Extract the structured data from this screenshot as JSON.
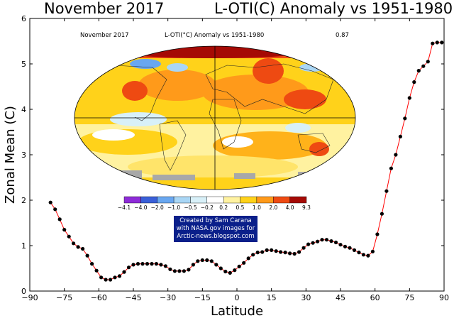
{
  "header": {
    "left_title": "November 2017",
    "right_title": "L-OTI(C) Anomaly vs 1951-1980"
  },
  "map": {
    "caption_left": "November 2017",
    "caption_center": "L-OTI(°C) Anomaly vs 1951-1980",
    "caption_right": "0.87",
    "legend_labels": [
      "-4.1",
      "-4.0",
      "-2.0",
      "-1.0",
      "-0.5",
      "-0.2",
      "0.2",
      "0.5",
      "1.0",
      "2.0",
      "4.0",
      "9.3"
    ],
    "legend_colors": [
      "#8e2bd8",
      "#3a5fd8",
      "#69a7f0",
      "#a9d6f5",
      "#d8f0f8",
      "#ffffff",
      "#fff2a0",
      "#ffd21a",
      "#ff9a1a",
      "#ee4a12",
      "#a50a05"
    ]
  },
  "credit": {
    "line1": "Created by Sam Carana",
    "line2": "with NASA.gov images for",
    "line3": "Arctic-news.blogspot.com"
  },
  "colors": {
    "line": "#ff0000",
    "marker": "#000000"
  },
  "chart_data": {
    "type": "line",
    "title": "November 2017 L-OTI(C) Anomaly vs 1951-1980",
    "xlabel": "Latitude",
    "ylabel": "Zonal Mean (C)",
    "xlim": [
      -90,
      90
    ],
    "ylim": [
      0,
      6
    ],
    "xticks": [
      -90,
      -75,
      -60,
      -45,
      -30,
      -15,
      0,
      15,
      30,
      45,
      60,
      75,
      90
    ],
    "yticks": [
      0,
      1,
      2,
      3,
      4,
      5,
      6
    ],
    "x": [
      -81,
      -79,
      -77,
      -75,
      -73,
      -71,
      -69,
      -67,
      -65,
      -63,
      -61,
      -59,
      -57,
      -55,
      -53,
      -51,
      -49,
      -47,
      -45,
      -43,
      -41,
      -39,
      -37,
      -35,
      -33,
      -31,
      -29,
      -27,
      -25,
      -23,
      -21,
      -19,
      -17,
      -15,
      -13,
      -11,
      -9,
      -7,
      -5,
      -3,
      -1,
      1,
      3,
      5,
      7,
      9,
      11,
      13,
      15,
      17,
      19,
      21,
      23,
      25,
      27,
      29,
      31,
      33,
      35,
      37,
      39,
      41,
      43,
      45,
      47,
      49,
      51,
      53,
      55,
      57,
      59,
      61,
      63,
      65,
      67,
      69,
      71,
      73,
      75,
      77,
      79,
      81,
      83,
      85,
      87,
      89
    ],
    "y": [
      1.95,
      1.8,
      1.58,
      1.35,
      1.2,
      1.05,
      0.97,
      0.93,
      0.78,
      0.6,
      0.45,
      0.3,
      0.25,
      0.25,
      0.3,
      0.33,
      0.42,
      0.52,
      0.58,
      0.6,
      0.6,
      0.6,
      0.6,
      0.6,
      0.58,
      0.55,
      0.48,
      0.44,
      0.44,
      0.44,
      0.47,
      0.58,
      0.66,
      0.68,
      0.68,
      0.66,
      0.58,
      0.5,
      0.43,
      0.4,
      0.46,
      0.54,
      0.62,
      0.72,
      0.8,
      0.85,
      0.86,
      0.9,
      0.9,
      0.88,
      0.86,
      0.85,
      0.83,
      0.82,
      0.86,
      0.95,
      1.03,
      1.06,
      1.09,
      1.13,
      1.13,
      1.1,
      1.07,
      1.02,
      0.98,
      0.95,
      0.9,
      0.85,
      0.8,
      0.78,
      0.87,
      1.25,
      1.7,
      2.2,
      2.7,
      3.0,
      3.4,
      3.8,
      4.25,
      4.6,
      4.85,
      4.95,
      5.05,
      5.45,
      5.47,
      5.47
    ]
  }
}
